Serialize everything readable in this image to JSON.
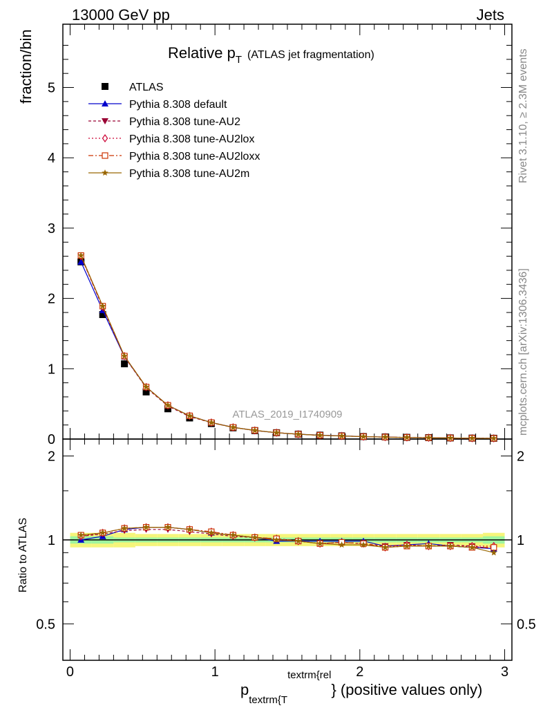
{
  "header": {
    "left": "13000 GeV pp",
    "right": "Jets"
  },
  "side_labels": {
    "rivet": "Rivet 3.1.10, ≥ 2.3M events",
    "mcplots": "mcplots.cern.ch [arXiv:1306.3436]"
  },
  "title": {
    "main": "Relative p",
    "sub": "T",
    "rest": "(ATLAS jet fragmentation)"
  },
  "analysis_tag": "ATLAS_2019_I1740909",
  "colors": {
    "atlas": "#000000",
    "default": "#0000cc",
    "au2": "#990033",
    "au2lox": "#cc0033",
    "au2loxx": "#cc3300",
    "au2m": "#996600",
    "band_outer": "#f5f57a",
    "band_inner": "#9ff59f"
  },
  "chart_data": [
    {
      "type": "line",
      "ylabel": "fraction/bin",
      "xlim": [
        -0.05,
        3.05
      ],
      "ylim": [
        0,
        5.9
      ],
      "yticks": [
        0,
        1,
        2,
        3,
        4,
        5
      ],
      "x": [
        0.075,
        0.225,
        0.375,
        0.525,
        0.675,
        0.825,
        0.975,
        1.125,
        1.275,
        1.425,
        1.575,
        1.725,
        1.875,
        2.025,
        2.175,
        2.325,
        2.475,
        2.625,
        2.775,
        2.925
      ],
      "legend": [
        "ATLAS",
        "Pythia 8.308 default",
        "Pythia 8.308 tune-AU2",
        "Pythia 8.308 tune-AU2lox",
        "Pythia 8.308 tune-AU2loxx",
        "Pythia 8.308 tune-AU2m"
      ],
      "series": [
        {
          "name": "ATLAS",
          "marker": "square",
          "values": [
            2.52,
            1.77,
            1.07,
            0.67,
            0.43,
            0.3,
            0.22,
            0.16,
            0.12,
            0.09,
            0.07,
            0.055,
            0.045,
            0.035,
            0.03,
            0.024,
            0.02,
            0.016,
            0.013,
            0.011
          ]
        },
        {
          "name": "Pythia 8.308 default",
          "marker": "triangle-up",
          "values": [
            2.52,
            1.83,
            1.17,
            0.74,
            0.48,
            0.33,
            0.235,
            0.167,
            0.122,
            0.089,
            0.069,
            0.055,
            0.045,
            0.035,
            0.028,
            0.023,
            0.019,
            0.015,
            0.012,
            0.01
          ]
        },
        {
          "name": "Pythia 8.308 tune-AU2",
          "marker": "triangle-down",
          "values": [
            2.6,
            1.87,
            1.17,
            0.73,
            0.47,
            0.32,
            0.232,
            0.165,
            0.122,
            0.09,
            0.069,
            0.053,
            0.044,
            0.034,
            0.028,
            0.023,
            0.019,
            0.015,
            0.012,
            0.01
          ]
        },
        {
          "name": "Pythia 8.308 tune-AU2lox",
          "marker": "diamond",
          "values": [
            2.6,
            1.88,
            1.18,
            0.74,
            0.48,
            0.33,
            0.235,
            0.167,
            0.123,
            0.09,
            0.069,
            0.054,
            0.044,
            0.034,
            0.028,
            0.023,
            0.019,
            0.015,
            0.012,
            0.01
          ]
        },
        {
          "name": "Pythia 8.308 tune-AU2loxx",
          "marker": "square-open",
          "values": [
            2.61,
            1.89,
            1.18,
            0.74,
            0.48,
            0.33,
            0.234,
            0.166,
            0.123,
            0.09,
            0.069,
            0.053,
            0.044,
            0.034,
            0.028,
            0.023,
            0.019,
            0.015,
            0.012,
            0.01
          ]
        },
        {
          "name": "Pythia 8.308 tune-AU2m",
          "marker": "star",
          "values": [
            2.61,
            1.89,
            1.18,
            0.74,
            0.48,
            0.33,
            0.234,
            0.166,
            0.123,
            0.09,
            0.069,
            0.053,
            0.043,
            0.034,
            0.028,
            0.023,
            0.019,
            0.015,
            0.012,
            0.01
          ]
        }
      ]
    },
    {
      "type": "line",
      "ylabel": "Ratio to ATLAS",
      "xlabel_main": "p",
      "xlabel_sub": "textrm{T",
      "xlabel_sup": "textrm{rel",
      "xlabel_rest": "} (positive values only)",
      "xlim": [
        -0.05,
        3.05
      ],
      "ylim": [
        0.37,
        2.3
      ],
      "yticks": [
        "0.5",
        "1",
        "2"
      ],
      "xticks": [
        "0",
        "1",
        "2",
        "3"
      ],
      "band_outer": [
        0.06,
        0.06,
        0.06,
        0.05,
        0.05,
        0.05,
        0.05,
        0.05,
        0.05,
        0.05,
        0.05,
        0.05,
        0.05,
        0.05,
        0.05,
        0.05,
        0.05,
        0.05,
        0.05,
        0.06
      ],
      "band_inner": [
        0.03,
        0.03,
        0.02,
        0.02,
        0.02,
        0.02,
        0.02,
        0.02,
        0.02,
        0.02,
        0.02,
        0.02,
        0.02,
        0.02,
        0.02,
        0.02,
        0.02,
        0.02,
        0.02,
        0.03
      ],
      "series": [
        {
          "name": "Pythia 8.308 default",
          "values": [
            1.0,
            1.03,
            1.09,
            1.11,
            1.11,
            1.09,
            1.06,
            1.04,
            1.02,
            0.99,
            0.99,
            0.99,
            0.99,
            0.99,
            0.95,
            0.96,
            0.97,
            0.95,
            0.94,
            0.93
          ]
        },
        {
          "name": "Pythia 8.308 tune-AU2",
          "values": [
            1.03,
            1.05,
            1.08,
            1.09,
            1.09,
            1.07,
            1.05,
            1.03,
            1.02,
            1.01,
            0.99,
            0.97,
            0.98,
            0.97,
            0.95,
            0.96,
            0.95,
            0.96,
            0.95,
            0.93
          ]
        },
        {
          "name": "Pythia 8.308 tune-AU2lox",
          "values": [
            1.03,
            1.06,
            1.1,
            1.11,
            1.11,
            1.09,
            1.07,
            1.04,
            1.02,
            1.01,
            0.99,
            0.97,
            0.98,
            0.97,
            0.94,
            0.96,
            0.95,
            0.95,
            0.95,
            0.95
          ]
        },
        {
          "name": "Pythia 8.308 tune-AU2loxx",
          "values": [
            1.04,
            1.06,
            1.1,
            1.11,
            1.11,
            1.09,
            1.07,
            1.04,
            1.02,
            1.01,
            0.99,
            0.97,
            0.98,
            0.97,
            0.94,
            0.95,
            0.95,
            0.95,
            0.94,
            0.94
          ]
        },
        {
          "name": "Pythia 8.308 tune-AU2m",
          "values": [
            1.04,
            1.06,
            1.1,
            1.11,
            1.11,
            1.09,
            1.06,
            1.04,
            1.02,
            1.0,
            0.99,
            0.97,
            0.96,
            0.96,
            0.94,
            0.95,
            0.95,
            0.95,
            0.94,
            0.9
          ]
        }
      ]
    }
  ]
}
